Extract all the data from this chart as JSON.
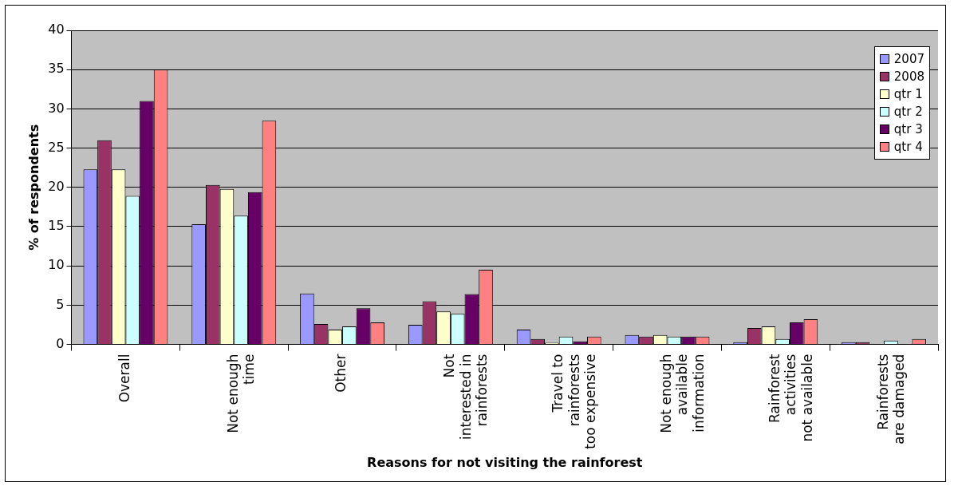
{
  "chart_data": {
    "type": "bar",
    "xlabel": "Reasons for not visiting the rainforest",
    "ylabel": "% of respondents",
    "categories": [
      "Overall",
      "Not enough time",
      "Other",
      "Not interested in rainforests",
      "Travel to rainforests too expensive",
      "Not enough available information",
      "Rainforest activities not available",
      "Rainforests are damaged"
    ],
    "series": [
      {
        "name": "2007",
        "color": "#9999ff",
        "values": [
          22.3,
          15.3,
          6.5,
          2.5,
          1.9,
          1.2,
          0.3,
          0.3
        ]
      },
      {
        "name": "2008",
        "color": "#993366",
        "values": [
          26.0,
          20.3,
          2.6,
          5.5,
          0.7,
          1.0,
          2.1,
          0.3
        ]
      },
      {
        "name": "qtr 1",
        "color": "#ffffcc",
        "values": [
          22.3,
          19.8,
          1.9,
          4.2,
          0.2,
          1.2,
          2.3,
          null
        ]
      },
      {
        "name": "qtr 2",
        "color": "#ccffff",
        "values": [
          18.9,
          16.4,
          2.3,
          3.9,
          1.0,
          1.0,
          0.7,
          0.5
        ]
      },
      {
        "name": "qtr 3",
        "color": "#660066",
        "values": [
          31.0,
          19.4,
          4.6,
          6.4,
          0.4,
          1.0,
          2.8,
          0
        ]
      },
      {
        "name": "qtr 4",
        "color": "#ff8080",
        "values": [
          35.0,
          28.5,
          2.8,
          9.5,
          1.0,
          1.0,
          3.2,
          0.7
        ]
      }
    ],
    "ylim": [
      0,
      40
    ],
    "yticks": [
      0,
      5,
      10,
      15,
      20,
      25,
      30,
      35,
      40
    ],
    "grid": "y",
    "legend": "top right"
  }
}
